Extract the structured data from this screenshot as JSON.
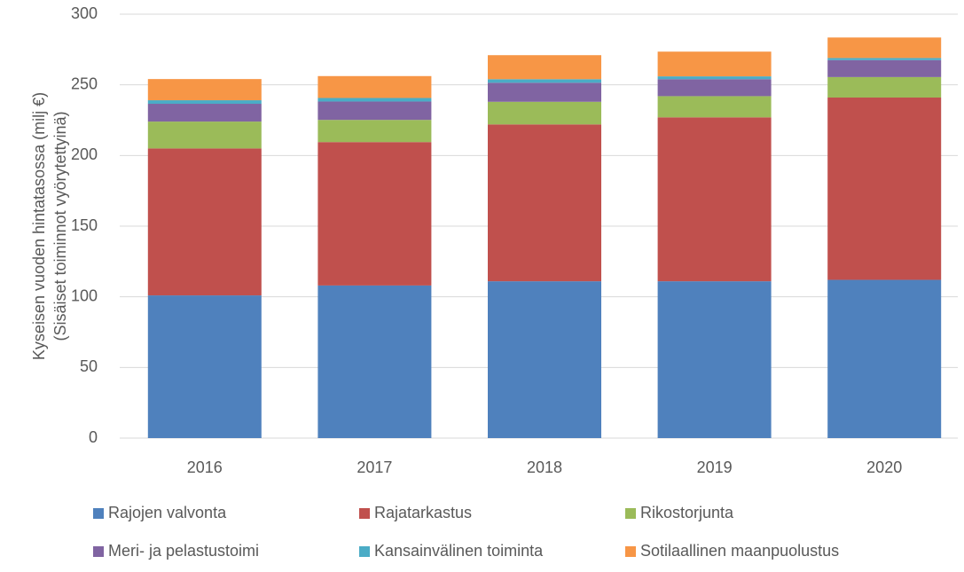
{
  "chart_data": {
    "type": "stacked_bar",
    "y_label": [
      "Kyseisen vuoden hintatasossa (milj €)",
      "(Sisäiset toiminnot vyörytettyinä)"
    ],
    "categories": [
      "2016",
      "2017",
      "2018",
      "2019",
      "2020"
    ],
    "series": [
      {
        "name": "Rajojen valvonta",
        "color": "#4f81bd",
        "values": [
          101,
          108,
          111,
          111,
          112
        ]
      },
      {
        "name": "Rajatarkastus",
        "color": "#c0504d",
        "values": [
          104,
          101.5,
          111,
          116,
          129
        ]
      },
      {
        "name": "Rikostorjunta",
        "color": "#9bbb59",
        "values": [
          19,
          15.7,
          16,
          15,
          14.5
        ]
      },
      {
        "name": "Meri- ja pelastustoimi",
        "color": "#8064a2",
        "values": [
          12.6,
          13,
          13.5,
          12,
          12
        ]
      },
      {
        "name": "Kansainvälinen toiminta",
        "color": "#4bacc6",
        "values": [
          2.5,
          2.5,
          2.5,
          2,
          1.5
        ]
      },
      {
        "name": "Sotilaallinen maanpuolustus",
        "color": "#f79646",
        "values": [
          15,
          15.5,
          17,
          17.5,
          14.5
        ]
      }
    ],
    "ylim": [
      0,
      300
    ],
    "yticks": [
      0,
      50,
      100,
      150,
      200,
      250,
      300
    ],
    "grid": true
  }
}
